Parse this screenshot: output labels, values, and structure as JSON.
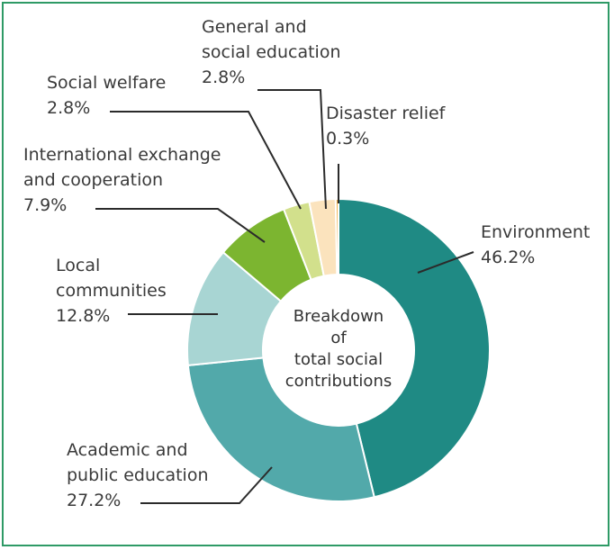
{
  "chart_data": {
    "type": "pie",
    "variant": "donut",
    "center_label": [
      "Breakdown",
      "of",
      "total social",
      "contributions"
    ],
    "unit": "%",
    "slices": [
      {
        "name": "Environment",
        "label_lines": [
          "Environment"
        ],
        "value": 46.2,
        "display": "46.2%",
        "color": "#1f8a84"
      },
      {
        "name": "Academic and public education",
        "label_lines": [
          "Academic and",
          "public education"
        ],
        "value": 27.2,
        "display": "27.2%",
        "color": "#52a9aa"
      },
      {
        "name": "Local communities",
        "label_lines": [
          "Local",
          "communities"
        ],
        "value": 12.8,
        "display": "12.8%",
        "color": "#a8d5d3"
      },
      {
        "name": "International exchange and cooperation",
        "label_lines": [
          "International exchange",
          "and cooperation"
        ],
        "value": 7.9,
        "display": "7.9%",
        "color": "#7cb530"
      },
      {
        "name": "Social welfare",
        "label_lines": [
          "Social welfare"
        ],
        "value": 2.8,
        "display": "2.8%",
        "color": "#d2e08c"
      },
      {
        "name": "General and social education",
        "label_lines": [
          "General and",
          "social education"
        ],
        "value": 2.8,
        "display": "2.8%",
        "color": "#fbe3bd"
      },
      {
        "name": "Disaster relief",
        "label_lines": [
          "Disaster relief"
        ],
        "value": 0.3,
        "display": "0.3%",
        "color": "#f0b24a"
      }
    ],
    "legend": "none",
    "direction": "clockwise from top"
  },
  "colors": {
    "frame_border": "#2e9a66",
    "slice_separator": "#ffffff",
    "leader_line": "#2b2b2b",
    "label_text": "#3a3a3a"
  }
}
